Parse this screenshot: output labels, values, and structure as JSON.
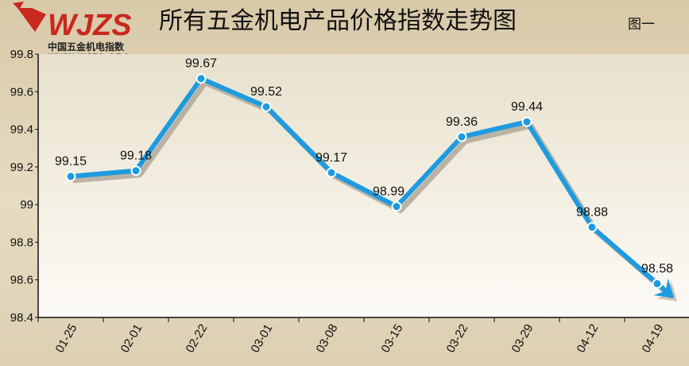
{
  "header": {
    "logo_word": "WJZS",
    "logo_cn": "中国五金机电指数",
    "logo_url": "WWW.WJZS.ORG",
    "title": "所有五金机电产品价格指数走势图",
    "figure_label": "图一"
  },
  "colors": {
    "line": "#1e9be0",
    "shadow": "#a89f92",
    "logo_red": "#c8281e",
    "plot_top": "#e9e4d2",
    "plot_bottom": "#fdfbf5"
  },
  "chart_data": {
    "type": "line",
    "title": "所有五金机电产品价格指数走势图",
    "categories": [
      "01-25",
      "02-01",
      "02-22",
      "03-01",
      "03-08",
      "03-15",
      "03-22",
      "03-29",
      "04-12",
      "04-19"
    ],
    "values": [
      99.15,
      99.18,
      99.67,
      99.52,
      99.17,
      98.99,
      99.36,
      99.44,
      98.88,
      98.58
    ],
    "data_labels": [
      "99.15",
      "99.18",
      "99.67",
      "99.52",
      "99.17",
      "98.99",
      "99.36",
      "99.44",
      "98.88",
      "98.58"
    ],
    "ylim": [
      98.4,
      99.8
    ],
    "yticks": [
      98.4,
      98.6,
      98.8,
      99,
      99.2,
      99.4,
      99.6,
      99.8
    ],
    "ytick_labels": [
      "98.4",
      "98.6",
      "98.8",
      "99",
      "99.2",
      "99.4",
      "99.6",
      "99.8"
    ],
    "last_point_arrow": true,
    "grid": false,
    "legend": "none"
  }
}
